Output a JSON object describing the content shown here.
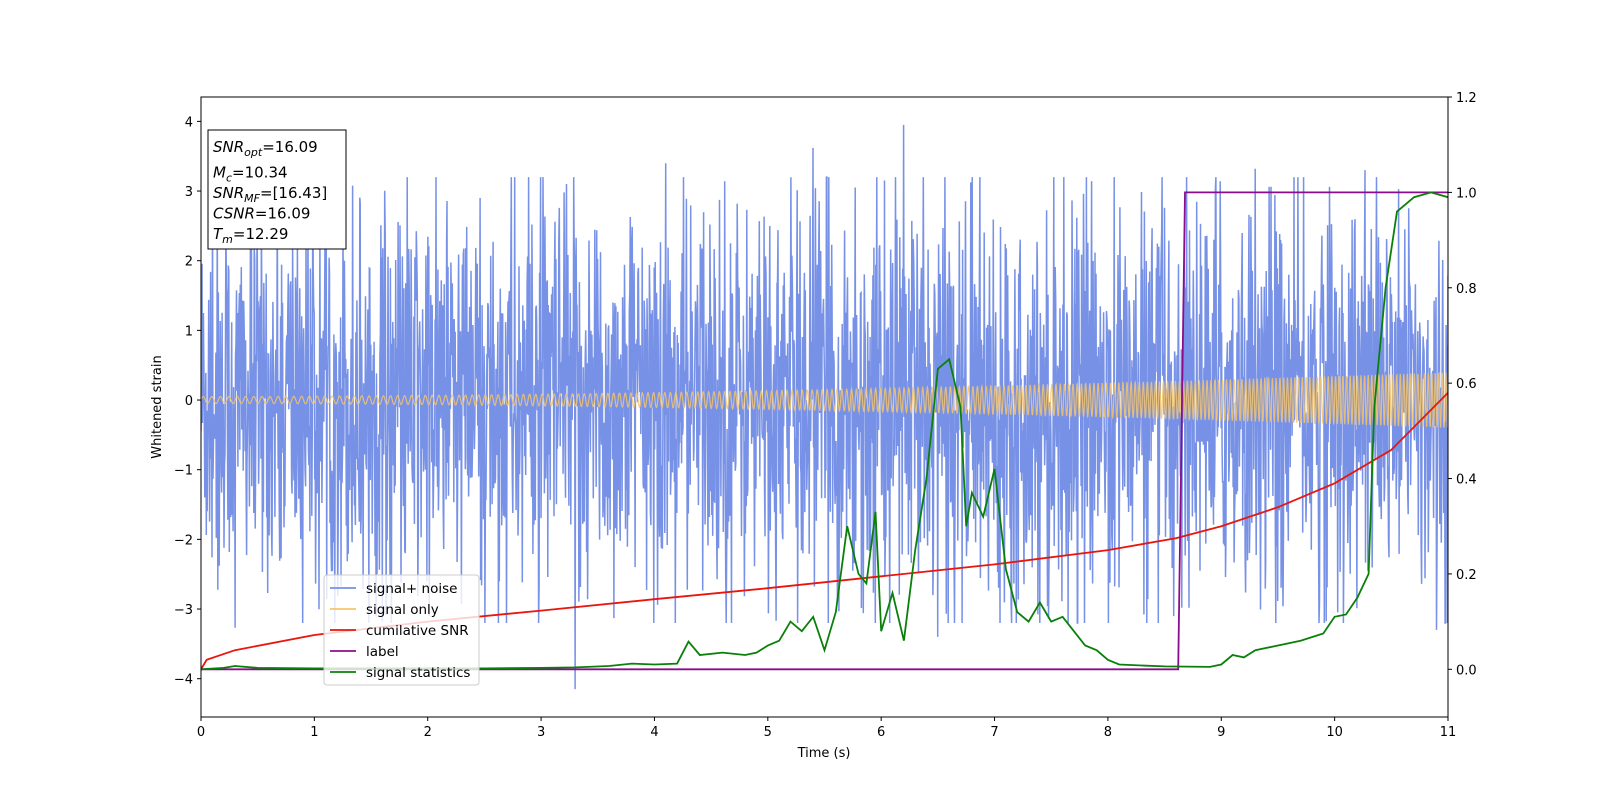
{
  "chart_data": {
    "type": "line",
    "xlabel": "Time (s)",
    "ylabel": "Whitened strain",
    "xlim": [
      0,
      11
    ],
    "ylim": [
      -4.55,
      4.35
    ],
    "y2lim": [
      -0.1,
      1.2
    ],
    "x_ticks": [
      "0",
      "1",
      "2",
      "3",
      "4",
      "5",
      "6",
      "7",
      "8",
      "9",
      "10",
      "11"
    ],
    "y_ticks": [
      "−4",
      "−3",
      "−2",
      "−1",
      "0",
      "1",
      "2",
      "3",
      "4"
    ],
    "y2_ticks": [
      "0.0",
      "0.2",
      "0.4",
      "0.6",
      "0.8",
      "1.0",
      "1.2"
    ],
    "grid": false,
    "legend_position": "lower-left",
    "annotation": {
      "lines": [
        {
          "base": "SNR",
          "sub": "opt",
          "value": "=16.09"
        },
        {
          "base": "M",
          "sub": "c",
          "value": "=10.34"
        },
        {
          "base": "SNR",
          "sub": "MF",
          "value": "=[16.43]"
        },
        {
          "base": "CSNR",
          "sub": "",
          "value": "=16.09"
        },
        {
          "base": "T",
          "sub": "m",
          "value": "=12.29"
        }
      ]
    },
    "series": [
      {
        "name": "signal+ noise",
        "color": "#7791e6",
        "axis": "left",
        "kind": "noise",
        "description_envelope": {
          "typical_amplitude": 2.3,
          "noted_extremes": [
            [
              0.1,
              3.0
            ],
            [
              0.3,
              -3.27
            ],
            [
              3.3,
              -4.15
            ],
            [
              4.1,
              3.4
            ],
            [
              6.2,
              3.95
            ],
            [
              5.4,
              3.62
            ],
            [
              6.5,
              -3.4
            ],
            [
              9.3,
              3.32
            ],
            [
              10.27,
              3.3
            ],
            [
              10.9,
              -3.3
            ]
          ]
        }
      },
      {
        "name": "signal only",
        "color": "#f5c46b",
        "axis": "left",
        "kind": "chirp",
        "amplitude_start": 0.05,
        "amplitude_end": 0.4
      },
      {
        "name": "cumilative SNR",
        "color": "#e8160c",
        "axis": "right",
        "x": [
          0,
          0.05,
          0.3,
          1,
          2,
          3,
          4,
          5,
          6,
          7,
          8,
          8.6,
          9,
          9.5,
          10,
          10.5,
          11
        ],
        "y": [
          0.0,
          0.02,
          0.04,
          0.072,
          0.1,
          0.123,
          0.147,
          0.17,
          0.195,
          0.22,
          0.25,
          0.275,
          0.3,
          0.34,
          0.39,
          0.46,
          0.58
        ]
      },
      {
        "name": "label",
        "color": "#8b0d8b",
        "axis": "right",
        "x": [
          0,
          8.62,
          8.68,
          11
        ],
        "y": [
          0,
          0,
          1,
          1
        ]
      },
      {
        "name": "signal statistics",
        "color": "#0a800a",
        "axis": "right",
        "x": [
          0,
          0.2,
          0.3,
          0.5,
          1,
          1.5,
          2,
          2.5,
          3,
          3.3,
          3.6,
          3.8,
          4,
          4.2,
          4.3,
          4.4,
          4.6,
          4.8,
          4.9,
          5,
          5.1,
          5.2,
          5.3,
          5.4,
          5.5,
          5.6,
          5.7,
          5.8,
          5.87,
          5.95,
          6.0,
          6.1,
          6.2,
          6.3,
          6.4,
          6.5,
          6.6,
          6.7,
          6.75,
          6.8,
          6.9,
          7.0,
          7.1,
          7.2,
          7.3,
          7.4,
          7.5,
          7.6,
          7.7,
          7.8,
          7.9,
          8.0,
          8.1,
          8.3,
          8.5,
          8.9,
          9.0,
          9.1,
          9.2,
          9.3,
          9.5,
          9.7,
          9.9,
          10.0,
          10.1,
          10.2,
          10.3,
          10.35,
          10.45,
          10.55,
          10.7,
          10.85,
          11
        ],
        "y": [
          0,
          0.003,
          0.007,
          0.003,
          0.002,
          0.002,
          0.002,
          0.002,
          0.003,
          0.004,
          0.007,
          0.012,
          0.01,
          0.012,
          0.058,
          0.03,
          0.035,
          0.03,
          0.035,
          0.05,
          0.06,
          0.1,
          0.08,
          0.11,
          0.04,
          0.12,
          0.3,
          0.2,
          0.18,
          0.33,
          0.08,
          0.16,
          0.06,
          0.25,
          0.4,
          0.63,
          0.65,
          0.55,
          0.3,
          0.37,
          0.32,
          0.42,
          0.21,
          0.12,
          0.1,
          0.14,
          0.1,
          0.11,
          0.08,
          0.05,
          0.04,
          0.02,
          0.01,
          0.008,
          0.006,
          0.005,
          0.01,
          0.03,
          0.025,
          0.04,
          0.05,
          0.06,
          0.075,
          0.11,
          0.115,
          0.15,
          0.2,
          0.55,
          0.8,
          0.96,
          0.99,
          1.0,
          0.99
        ]
      }
    ]
  }
}
